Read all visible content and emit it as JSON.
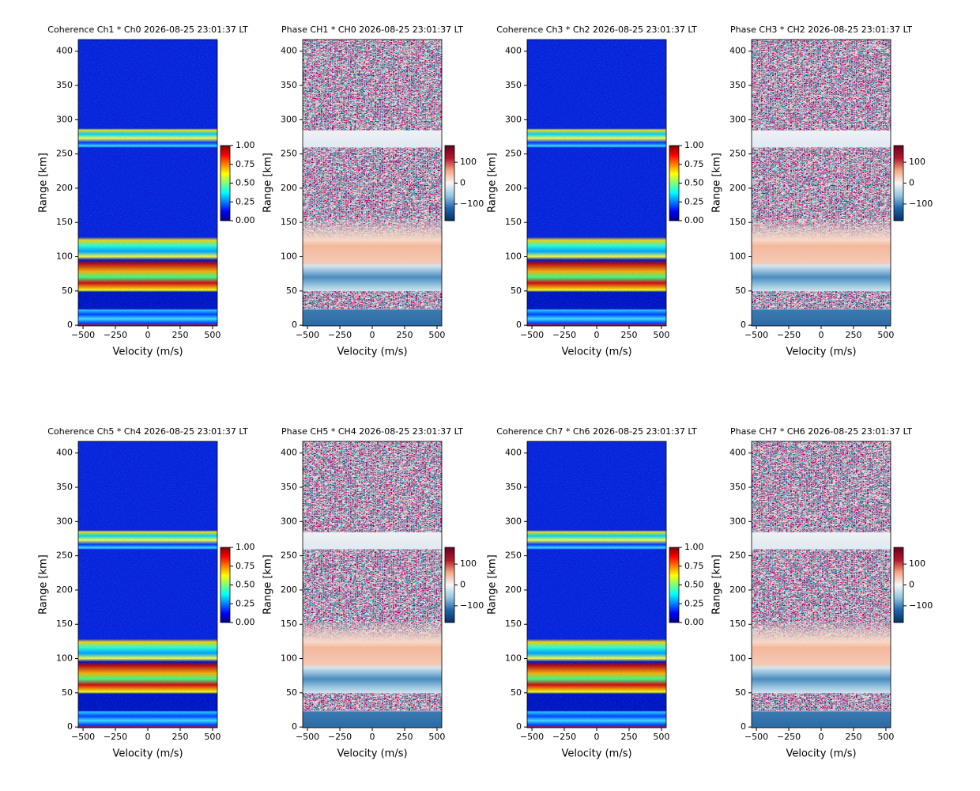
{
  "chart_data": [
    {
      "type": "heatmap",
      "title": "Coherence Ch1 * Ch0 2026-08-25 23:01:37 LT",
      "x_label": "Velocity (m/s)",
      "y_label": "Range [km]",
      "xlim": [
        -537,
        537
      ],
      "ylim": [
        -1,
        417
      ],
      "xticks": [
        {
          "value": -500,
          "label": "−500"
        },
        {
          "value": -250,
          "label": "−250"
        },
        0,
        250,
        500
      ],
      "yticks": [
        0,
        50,
        100,
        150,
        200,
        250,
        300,
        350,
        400
      ],
      "colorbar": {
        "colormap": "jet",
        "clim": [
          0,
          1
        ],
        "ticks": [
          {
            "value": 0,
            "label": "0.00"
          },
          {
            "value": 0.25,
            "label": "0.25"
          },
          {
            "value": 0.5,
            "label": "0.50"
          },
          {
            "value": 0.75,
            "label": "0.75"
          },
          {
            "value": 1,
            "label": "1.00"
          }
        ]
      }
    },
    {
      "type": "heatmap",
      "title": "Phase CH1 * CH0 2026-08-25 23:01:37 LT",
      "x_label": "Velocity (m/s)",
      "y_label": "Range [km]",
      "xlim": [
        -537,
        537
      ],
      "ylim": [
        -1,
        417
      ],
      "xticks": [
        {
          "value": -500,
          "label": "−500"
        },
        {
          "value": -250,
          "label": "−250"
        },
        0,
        250,
        500
      ],
      "yticks": [
        0,
        50,
        100,
        150,
        200,
        250,
        300,
        350,
        400
      ],
      "colorbar": {
        "colormap": "RdBu_r",
        "clim": [
          -180,
          180
        ],
        "ticks": [
          {
            "value": -100,
            "label": "−100"
          },
          0,
          100
        ]
      }
    },
    {
      "type": "heatmap",
      "title": "Coherence Ch3 * Ch2 2026-08-25 23:01:37 LT",
      "x_label": "Velocity (m/s)",
      "y_label": "Range [km]",
      "xlim": [
        -537,
        537
      ],
      "ylim": [
        -1,
        417
      ],
      "xticks": [
        {
          "value": -500,
          "label": "−500"
        },
        {
          "value": -250,
          "label": "−250"
        },
        0,
        250,
        500
      ],
      "yticks": [
        0,
        50,
        100,
        150,
        200,
        250,
        300,
        350,
        400
      ],
      "colorbar": {
        "colormap": "jet",
        "clim": [
          0,
          1
        ],
        "ticks": [
          {
            "value": 0,
            "label": "0.00"
          },
          {
            "value": 0.25,
            "label": "0.25"
          },
          {
            "value": 0.5,
            "label": "0.50"
          },
          {
            "value": 0.75,
            "label": "0.75"
          },
          {
            "value": 1,
            "label": "1.00"
          }
        ]
      }
    },
    {
      "type": "heatmap",
      "title": "Phase CH3 * CH2 2026-08-25 23:01:37 LT",
      "x_label": "Velocity (m/s)",
      "y_label": "Range [km]",
      "xlim": [
        -537,
        537
      ],
      "ylim": [
        -1,
        417
      ],
      "xticks": [
        {
          "value": -500,
          "label": "−500"
        },
        {
          "value": -250,
          "label": "−250"
        },
        0,
        250,
        500
      ],
      "yticks": [
        0,
        50,
        100,
        150,
        200,
        250,
        300,
        350,
        400
      ],
      "colorbar": {
        "colormap": "RdBu_r",
        "clim": [
          -180,
          180
        ],
        "ticks": [
          {
            "value": -100,
            "label": "−100"
          },
          0,
          100
        ]
      }
    },
    {
      "type": "heatmap",
      "title": "Coherence Ch5 * Ch4 2026-08-25 23:01:37 LT",
      "x_label": "Velocity (m/s)",
      "y_label": "Range [km]",
      "xlim": [
        -537,
        537
      ],
      "ylim": [
        -1,
        417
      ],
      "xticks": [
        {
          "value": -500,
          "label": "−500"
        },
        {
          "value": -250,
          "label": "−250"
        },
        0,
        250,
        500
      ],
      "yticks": [
        0,
        50,
        100,
        150,
        200,
        250,
        300,
        350,
        400
      ],
      "colorbar": {
        "colormap": "jet",
        "clim": [
          0,
          1
        ],
        "ticks": [
          {
            "value": 0,
            "label": "0.00"
          },
          {
            "value": 0.25,
            "label": "0.25"
          },
          {
            "value": 0.5,
            "label": "0.50"
          },
          {
            "value": 0.75,
            "label": "0.75"
          },
          {
            "value": 1,
            "label": "1.00"
          }
        ]
      }
    },
    {
      "type": "heatmap",
      "title": "Phase CH5 * CH4 2026-08-25 23:01:37 LT",
      "x_label": "Velocity (m/s)",
      "y_label": "Range [km]",
      "xlim": [
        -537,
        537
      ],
      "ylim": [
        -1,
        417
      ],
      "xticks": [
        {
          "value": -500,
          "label": "−500"
        },
        {
          "value": -250,
          "label": "−250"
        },
        0,
        250,
        500
      ],
      "yticks": [
        0,
        50,
        100,
        150,
        200,
        250,
        300,
        350,
        400
      ],
      "colorbar": {
        "colormap": "RdBu_r",
        "clim": [
          -180,
          180
        ],
        "ticks": [
          {
            "value": -100,
            "label": "−100"
          },
          0,
          100
        ]
      }
    },
    {
      "type": "heatmap",
      "title": "Coherence Ch7 * Ch6 2026-08-25 23:01:37 LT",
      "x_label": "Velocity (m/s)",
      "y_label": "Range [km]",
      "xlim": [
        -537,
        537
      ],
      "ylim": [
        -1,
        417
      ],
      "xticks": [
        {
          "value": -500,
          "label": "−500"
        },
        {
          "value": -250,
          "label": "−250"
        },
        0,
        250,
        500
      ],
      "yticks": [
        0,
        50,
        100,
        150,
        200,
        250,
        300,
        350,
        400
      ],
      "colorbar": {
        "colormap": "jet",
        "clim": [
          0,
          1
        ],
        "ticks": [
          {
            "value": 0,
            "label": "0.00"
          },
          {
            "value": 0.25,
            "label": "0.25"
          },
          {
            "value": 0.5,
            "label": "0.50"
          },
          {
            "value": 0.75,
            "label": "0.75"
          },
          {
            "value": 1,
            "label": "1.00"
          }
        ]
      }
    },
    {
      "type": "heatmap",
      "title": "Phase CH7 * CH6 2026-08-25 23:01:37 LT",
      "x_label": "Velocity (m/s)",
      "y_label": "Range [km]",
      "xlim": [
        -537,
        537
      ],
      "ylim": [
        -1,
        417
      ],
      "xticks": [
        {
          "value": -500,
          "label": "−500"
        },
        {
          "value": -250,
          "label": "−250"
        },
        0,
        250,
        500
      ],
      "yticks": [
        0,
        50,
        100,
        150,
        200,
        250,
        300,
        350,
        400
      ],
      "colorbar": {
        "colormap": "RdBu_r",
        "clim": [
          -180,
          180
        ],
        "ticks": [
          {
            "value": -100,
            "label": "−100"
          },
          0,
          100
        ]
      }
    }
  ]
}
